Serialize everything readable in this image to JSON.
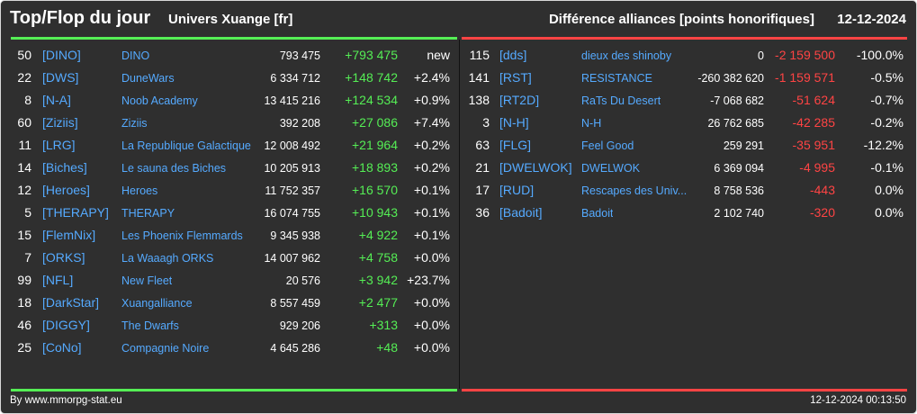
{
  "header": {
    "title": "Top/Flop du jour",
    "universe": "Univers Xuange [fr]",
    "subtitle": "Différence alliances [points honorifiques]",
    "date": "12-12-2024"
  },
  "colors": {
    "positive": "#55ee55",
    "negative": "#ff4444",
    "link": "#55aaff",
    "top_bar": "#55ee55",
    "flop_bar": "#ff4444"
  },
  "top": [
    {
      "rank": "50",
      "tag": "[DINO]",
      "name": "DINO",
      "score": "793 475",
      "diff": "+793 475",
      "pct": "new"
    },
    {
      "rank": "22",
      "tag": "[DWS]",
      "name": "DuneWars",
      "score": "6 334 712",
      "diff": "+148 742",
      "pct": "+2.4%"
    },
    {
      "rank": "8",
      "tag": "[N-A]",
      "name": "Noob Academy",
      "score": "13 415 216",
      "diff": "+124 534",
      "pct": "+0.9%"
    },
    {
      "rank": "60",
      "tag": "[Ziziis]",
      "name": "Ziziis",
      "score": "392 208",
      "diff": "+27 086",
      "pct": "+7.4%"
    },
    {
      "rank": "11",
      "tag": "[LRG]",
      "name": "La Republique Galactique",
      "score": "12 008 492",
      "diff": "+21 964",
      "pct": "+0.2%"
    },
    {
      "rank": "14",
      "tag": "[Biches]",
      "name": "Le sauna des Biches",
      "score": "10 205 913",
      "diff": "+18 893",
      "pct": "+0.2%"
    },
    {
      "rank": "12",
      "tag": "[Heroes]",
      "name": "Heroes",
      "score": "11 752 357",
      "diff": "+16 570",
      "pct": "+0.1%"
    },
    {
      "rank": "5",
      "tag": "[THERAPY]",
      "name": "THERAPY",
      "score": "16 074 755",
      "diff": "+10 943",
      "pct": "+0.1%"
    },
    {
      "rank": "15",
      "tag": "[FlemNix]",
      "name": "Les Phoenix Flemmards",
      "score": "9 345 938",
      "diff": "+4 922",
      "pct": "+0.1%"
    },
    {
      "rank": "7",
      "tag": "[ORKS]",
      "name": "La Waaagh ORKS",
      "score": "14 007 962",
      "diff": "+4 758",
      "pct": "+0.0%"
    },
    {
      "rank": "99",
      "tag": "[NFL]",
      "name": "New Fleet",
      "score": "20 576",
      "diff": "+3 942",
      "pct": "+23.7%"
    },
    {
      "rank": "18",
      "tag": "[DarkStar]",
      "name": "Xuangalliance",
      "score": "8 557 459",
      "diff": "+2 477",
      "pct": "+0.0%"
    },
    {
      "rank": "46",
      "tag": "[DIGGY]",
      "name": "The Dwarfs",
      "score": "929 206",
      "diff": "+313",
      "pct": "+0.0%"
    },
    {
      "rank": "25",
      "tag": "[CoNo]",
      "name": "Compagnie Noire",
      "score": "4 645 286",
      "diff": "+48",
      "pct": "+0.0%"
    }
  ],
  "flop": [
    {
      "rank": "115",
      "tag": "[dds]",
      "name": "dieux des shinoby",
      "score": "0",
      "diff": "-2 159 500",
      "pct": "-100.0%"
    },
    {
      "rank": "141",
      "tag": "[RST]",
      "name": "RESISTANCE",
      "score": "-260 382 620",
      "diff": "-1 159 571",
      "pct": "-0.5%"
    },
    {
      "rank": "138",
      "tag": "[RT2D]",
      "name": "RaTs Du Desert",
      "score": "-7 068 682",
      "diff": "-51 624",
      "pct": "-0.7%"
    },
    {
      "rank": "3",
      "tag": "[N-H]",
      "name": "N-H",
      "score": "26 762 685",
      "diff": "-42 285",
      "pct": "-0.2%"
    },
    {
      "rank": "63",
      "tag": "[FLG]",
      "name": "Feel Good",
      "score": "259 291",
      "diff": "-35 951",
      "pct": "-12.2%"
    },
    {
      "rank": "21",
      "tag": "[DWELWOK]",
      "name": "DWELWOK",
      "score": "6 369 094",
      "diff": "-4 995",
      "pct": "-0.1%"
    },
    {
      "rank": "17",
      "tag": "[RUD]",
      "name": "Rescapes des Univ...",
      "score": "8 758 536",
      "diff": "-443",
      "pct": "0.0%"
    },
    {
      "rank": "36",
      "tag": "[Badoit]",
      "name": "Badoit",
      "score": "2 102 740",
      "diff": "-320",
      "pct": "0.0%"
    }
  ],
  "footer": {
    "source": "By www.mmorpg-stat.eu",
    "timestamp": "12-12-2024 00:13:50"
  }
}
